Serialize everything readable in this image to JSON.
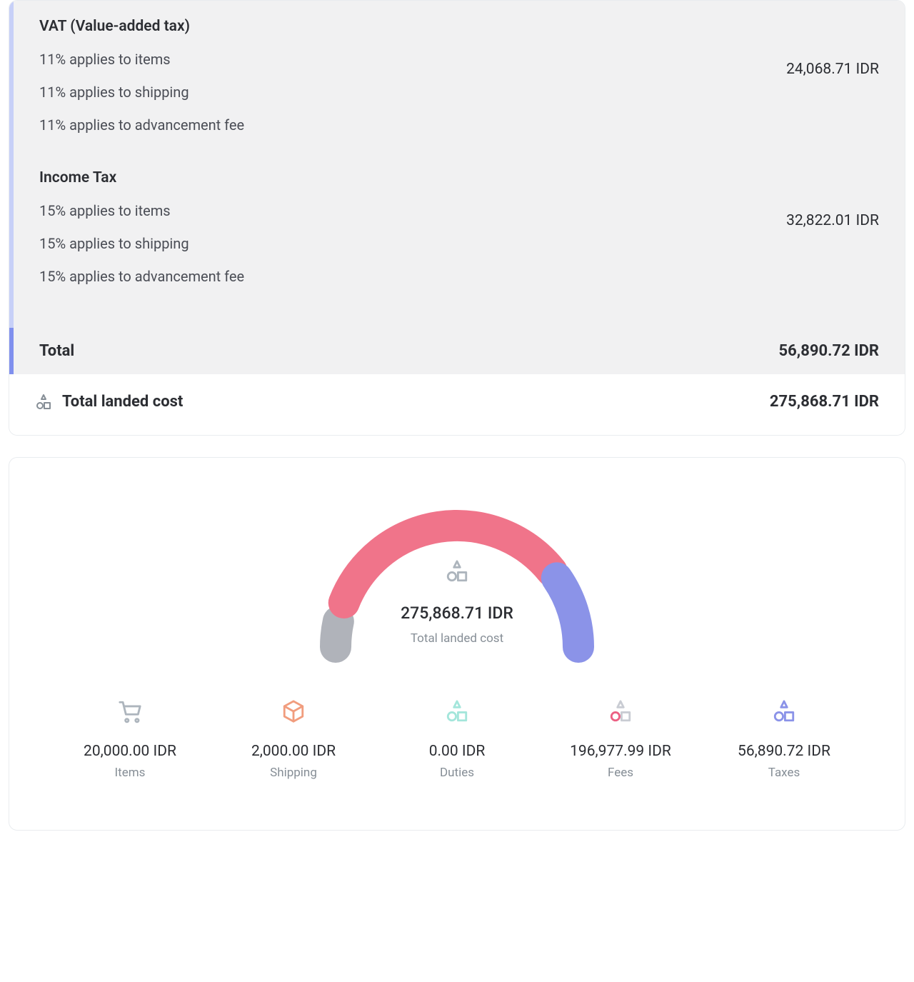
{
  "colors": {
    "panel_bg": "#f1f1f2",
    "border": "#e9ecef",
    "accent_left_light": "#c7d0f8",
    "accent_left_dark": "#8090ee",
    "text_primary": "#2c2e33",
    "text_secondary": "#868e96",
    "gray_icon": "#adb5bd",
    "pink": "#f0748a",
    "purple": "#8b93e8",
    "gray_seg": "#b0b3ba",
    "thin_red": "#ef5063",
    "orange": "#f19d7e",
    "teal": "#a4e6db",
    "pink_outline": "#ec6083"
  },
  "taxes": {
    "sections": [
      {
        "title": "VAT (Value-added tax)",
        "lines": [
          "11% applies to items",
          "11% applies to shipping",
          "11% applies to advancement fee"
        ],
        "amount": "24,068.71 IDR"
      },
      {
        "title": "Income Tax",
        "lines": [
          "15% applies to items",
          "15% applies to shipping",
          "15% applies to advancement fee"
        ],
        "amount": "32,822.01 IDR"
      }
    ],
    "total_label": "Total",
    "total_amount": "56,890.72 IDR"
  },
  "landed": {
    "label": "Total landed cost",
    "amount": "275,868.71 IDR"
  },
  "gauge": {
    "center_value": "275,868.71 IDR",
    "center_label": "Total landed cost",
    "segments": [
      {
        "name": "items",
        "value": 20000.0,
        "color": "#b0b3ba"
      },
      {
        "name": "shipping",
        "value": 2000.0,
        "color": "#ef5063"
      },
      {
        "name": "duties",
        "value": 0.0,
        "color": "#a4e6db"
      },
      {
        "name": "fees",
        "value": 196977.99,
        "color": "#f0748a"
      },
      {
        "name": "taxes",
        "value": 56890.72,
        "color": "#8b93e8"
      }
    ],
    "stroke_width": 44,
    "gap_deg": 4,
    "radius": 170
  },
  "breakdown": [
    {
      "icon": "cart",
      "value": "20,000.00 IDR",
      "label": "Items"
    },
    {
      "icon": "box",
      "value": "2,000.00 IDR",
      "label": "Shipping"
    },
    {
      "icon": "shapes-teal",
      "value": "0.00 IDR",
      "label": "Duties"
    },
    {
      "icon": "shapes-pink",
      "value": "196,977.99 IDR",
      "label": "Fees"
    },
    {
      "icon": "shapes-purple",
      "value": "56,890.72 IDR",
      "label": "Taxes"
    }
  ]
}
